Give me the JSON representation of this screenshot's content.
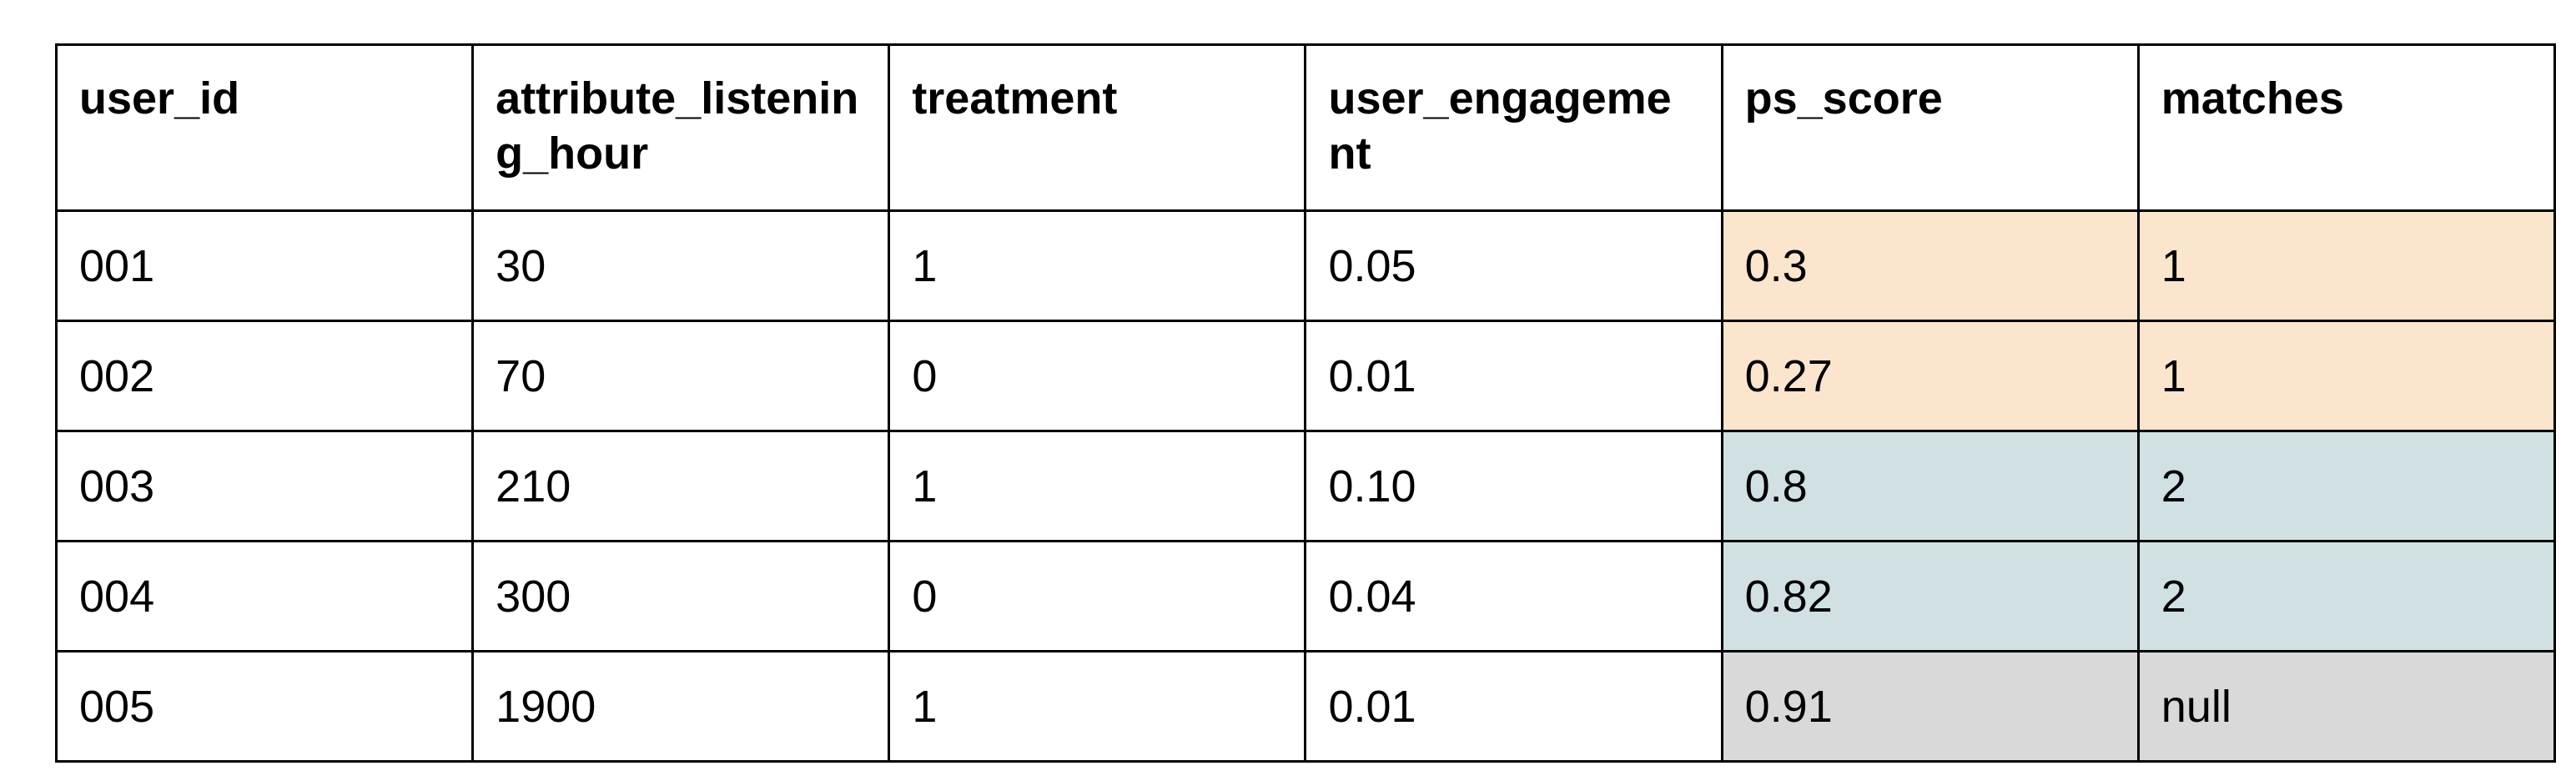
{
  "table": {
    "header": [
      "user_id",
      "attribute_listening_hour",
      "treatment",
      "user_engagement",
      "ps_score",
      "matches"
    ],
    "rows": [
      [
        "001",
        "30",
        "1",
        "0.05",
        "0.3",
        "1"
      ],
      [
        "002",
        "70",
        "0",
        "0.01",
        "0.27",
        "1"
      ],
      [
        "003",
        "210",
        "1",
        "0.10",
        "0.8",
        "2"
      ],
      [
        "004",
        "300",
        "0",
        "0.04",
        "0.82",
        "2"
      ],
      [
        "005",
        "1900",
        "1",
        "0.01",
        "0.91",
        "null"
      ]
    ]
  }
}
